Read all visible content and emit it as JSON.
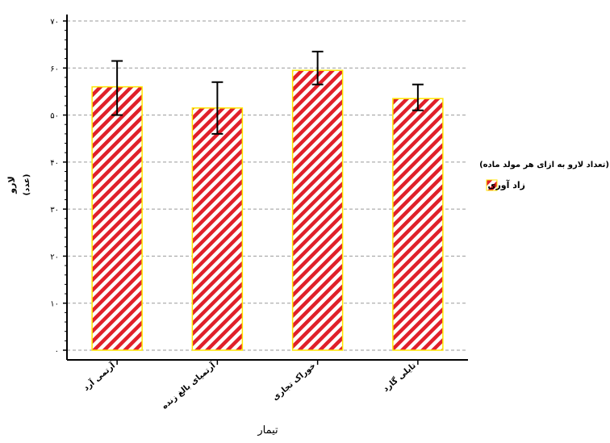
{
  "chart_data": {
    "type": "bar",
    "title": "",
    "xlabel": "تیمار",
    "ylabel": [
      "لارو",
      "(عدد)"
    ],
    "categories": [
      "آرتمی آرد",
      "آرتمیای بالغ زنده",
      "خوراک تجاری",
      "تایلی گارد"
    ],
    "series": [
      {
        "name": "زاد آوری",
        "values": [
          56,
          51.5,
          59.5,
          53.5
        ],
        "error_low": [
          50,
          46,
          56.5,
          51
        ],
        "error_high": [
          61.5,
          57,
          63.5,
          56.5
        ]
      }
    ],
    "ylim": [
      0,
      70
    ],
    "yticks": [
      0,
      10,
      20,
      30,
      40,
      50,
      60,
      70
    ],
    "ytick_labels": [
      "۰",
      "۱۰",
      "۲۰",
      "۳۰",
      "۴۰",
      "۵۰",
      "۶۰",
      "۷۰"
    ],
    "grid": "horizontal dashed",
    "legend": {
      "title": "(تعداد لارو به ازای هر مولد ماده)",
      "placement": "right",
      "entries": [
        "زاد آوری"
      ]
    },
    "colors": {
      "hatch": "#e0202a",
      "bar_border": "#ffe600",
      "bar_fill": "#ffffff",
      "axis": "#000000",
      "grid": "#9a9a9a"
    }
  }
}
